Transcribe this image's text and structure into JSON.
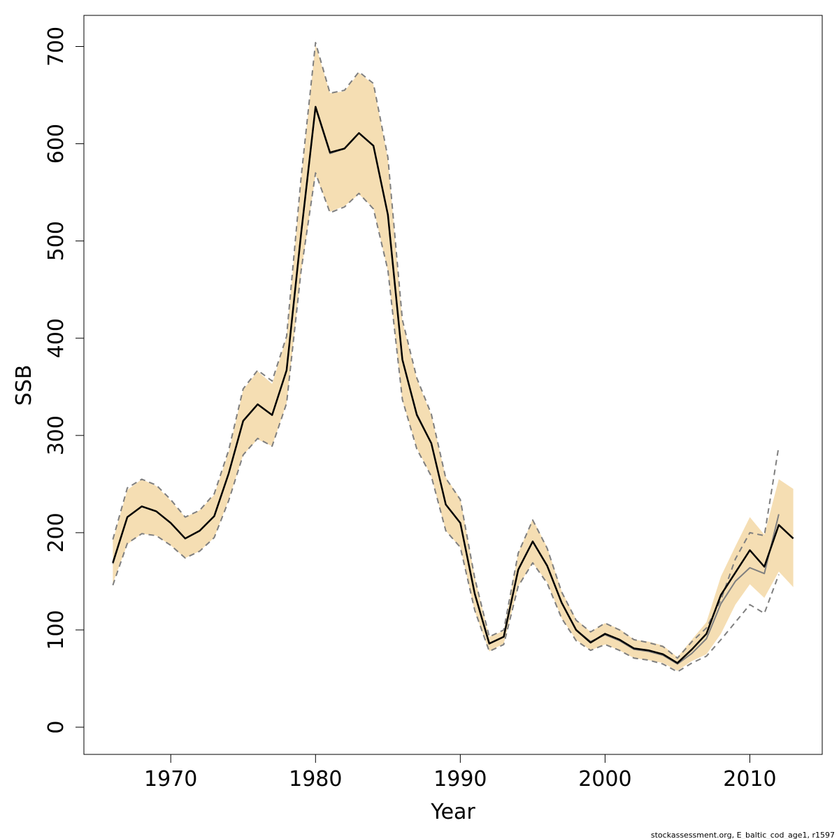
{
  "chart_data": {
    "type": "line",
    "xlabel": "Year",
    "ylabel": "SSB",
    "xlim": [
      1964,
      2015
    ],
    "ylim": [
      -28,
      732
    ],
    "x_ticks": [
      1970,
      1980,
      1990,
      2000,
      2010
    ],
    "y_ticks": [
      0,
      100,
      200,
      300,
      400,
      500,
      600,
      700
    ],
    "footnote": "stockassessment.org, E_baltic_cod_age1, r1597",
    "colors": {
      "band": "#f5deb3",
      "estimate": "#000000",
      "previous": "#7f7f7f",
      "bounds": "#7f7f7f"
    },
    "series": [
      {
        "type": "band",
        "x": [
          1966,
          1967,
          1968,
          1969,
          1970,
          1971,
          1972,
          1973,
          1974,
          1975,
          1976,
          1977,
          1978,
          1979,
          1980,
          1981,
          1982,
          1983,
          1984,
          1985,
          1986,
          1987,
          1988,
          1989,
          1990,
          1991,
          1992,
          1993,
          1994,
          1995,
          1996,
          1997,
          1998,
          1999,
          2000,
          2001,
          2002,
          2003,
          2004,
          2005,
          2006,
          2007,
          2008,
          2009,
          2010,
          2011,
          2012,
          2013
        ],
        "upper": [
          192,
          244,
          255,
          248,
          233,
          216,
          223,
          239,
          283,
          347,
          366,
          353,
          401,
          563,
          702,
          652,
          654,
          673,
          661,
          585,
          417,
          358,
          321,
          257,
          235,
          154,
          93,
          99,
          179,
          214,
          185,
          140,
          111,
          98,
          107,
          101,
          90,
          88,
          84,
          72,
          90,
          108,
          155,
          186,
          216,
          198,
          255,
          245
        ],
        "lower": [
          148,
          188,
          199,
          197,
          187,
          174,
          181,
          195,
          234,
          280,
          296,
          289,
          333,
          467,
          568,
          530,
          536,
          548,
          534,
          469,
          336,
          287,
          258,
          202,
          185,
          119,
          78,
          86,
          145,
          169,
          149,
          112,
          90,
          79,
          85,
          79,
          71,
          69,
          66,
          58,
          68,
          75,
          96,
          126,
          147,
          133,
          160,
          144
        ]
      },
      {
        "type": "line",
        "style": "solid",
        "x": [
          1966,
          1967,
          1968,
          1969,
          1970,
          1971,
          1972,
          1973,
          1974,
          1975,
          1976,
          1977,
          1978,
          1979,
          1980,
          1981,
          1982,
          1983,
          1984,
          1985,
          1986,
          1987,
          1988,
          1989,
          1990,
          1991,
          1992,
          1993,
          1994,
          1995,
          1996,
          1997,
          1998,
          1999,
          2000,
          2001,
          2002,
          2003,
          2004,
          2005,
          2006,
          2007,
          2008,
          2009,
          2010,
          2011,
          2012
        ],
        "values": [
          168,
          216,
          227,
          222,
          210,
          194,
          202,
          217,
          261,
          315,
          332,
          321,
          367,
          507,
          637,
          590,
          595,
          611,
          598,
          527,
          378,
          322,
          292,
          229,
          210,
          137,
          86,
          93,
          162,
          191,
          166,
          128,
          100,
          88,
          95,
          89,
          80,
          78,
          74,
          65,
          76,
          91,
          127,
          150,
          164,
          158,
          219
        ]
      },
      {
        "type": "line",
        "style": "dashed",
        "x": [
          1966,
          1967,
          1968,
          1969,
          1970,
          1971,
          1972,
          1973,
          1974,
          1975,
          1976,
          1977,
          1978,
          1979,
          1980,
          1981,
          1982,
          1983,
          1984,
          1985,
          1986,
          1987,
          1988,
          1989,
          1990,
          1991,
          1992,
          1993,
          1994,
          1995,
          1996,
          1997,
          1998,
          1999,
          2000,
          2001,
          2002,
          2003,
          2004,
          2005,
          2006,
          2007,
          2008,
          2009,
          2010,
          2011,
          2012
        ],
        "values": [
          193,
          246,
          255,
          249,
          234,
          216,
          223,
          240,
          285,
          348,
          367,
          356,
          402,
          565,
          704,
          652,
          655,
          674,
          662,
          586,
          419,
          359,
          322,
          256,
          234,
          153,
          93,
          100,
          179,
          213,
          184,
          139,
          110,
          98,
          107,
          100,
          90,
          87,
          83,
          71,
          88,
          102,
          131,
          173,
          200,
          197,
          289
        ]
      },
      {
        "type": "line",
        "style": "dashed",
        "x": [
          1966,
          1967,
          1968,
          1969,
          1970,
          1971,
          1972,
          1973,
          1974,
          1975,
          1976,
          1977,
          1978,
          1979,
          1980,
          1981,
          1982,
          1983,
          1984,
          1985,
          1986,
          1987,
          1988,
          1989,
          1990,
          1991,
          1992,
          1993,
          1994,
          1995,
          1996,
          1997,
          1998,
          1999,
          2000,
          2001,
          2002,
          2003,
          2004,
          2005,
          2006,
          2007,
          2008,
          2009,
          2010,
          2011,
          2012
        ],
        "values": [
          146,
          189,
          199,
          197,
          187,
          174,
          181,
          195,
          233,
          280,
          297,
          289,
          333,
          469,
          570,
          529,
          535,
          549,
          533,
          470,
          337,
          286,
          258,
          202,
          185,
          120,
          78,
          85,
          145,
          169,
          148,
          112,
          89,
          79,
          85,
          79,
          71,
          69,
          65,
          57,
          66,
          73,
          90,
          108,
          126,
          117,
          157
        ]
      },
      {
        "type": "line",
        "style": "bold",
        "x": [
          1966,
          1967,
          1968,
          1969,
          1970,
          1971,
          1972,
          1973,
          1974,
          1975,
          1976,
          1977,
          1978,
          1979,
          1980,
          1981,
          1982,
          1983,
          1984,
          1985,
          1986,
          1987,
          1988,
          1989,
          1990,
          1991,
          1992,
          1993,
          1994,
          1995,
          1996,
          1997,
          1998,
          1999,
          2000,
          2001,
          2002,
          2003,
          2004,
          2005,
          2006,
          2007,
          2008,
          2009,
          2010,
          2011,
          2012,
          2013
        ],
        "values": [
          169,
          216,
          227,
          222,
          210,
          194,
          202,
          217,
          261,
          315,
          332,
          321,
          367,
          507,
          638,
          591,
          595,
          611,
          598,
          527,
          378,
          321,
          292,
          229,
          210,
          137,
          86,
          93,
          162,
          191,
          166,
          128,
          100,
          87,
          96,
          90,
          81,
          79,
          75,
          66,
          80,
          96,
          136,
          159,
          182,
          165,
          208,
          194
        ]
      }
    ]
  }
}
